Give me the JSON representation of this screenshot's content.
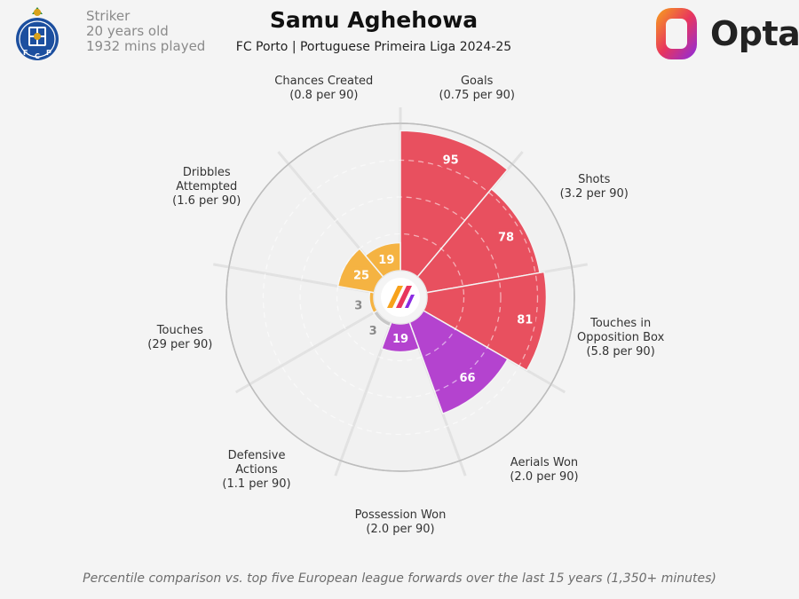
{
  "player": {
    "name": "Samu Aghehowa",
    "position": "Striker",
    "age": "20 years old",
    "minutes": "1932 mins played",
    "team_competition": "FC Porto | Portuguese Primeira Liga 2024-25"
  },
  "branding": {
    "opta": "Opta"
  },
  "footer": "Percentile comparison vs. top five European league forwards over the last 15 years (1,350+ minutes)",
  "colors": {
    "attacking": "#e8505f",
    "physical": "#b443cf",
    "defending": "#c7c7c7",
    "possession": "#f5b342",
    "ring": "#bdbdbd",
    "background": "#f4f4f4"
  },
  "chart_data": {
    "type": "polar-bar",
    "rmax": 100,
    "rings": [
      25,
      50,
      75
    ],
    "series": [
      {
        "label": [
          "Goals",
          "(0.75 per 90)"
        ],
        "value": 95,
        "group": "attacking"
      },
      {
        "label": [
          "Shots",
          "(3.2 per 90)"
        ],
        "value": 78,
        "group": "attacking"
      },
      {
        "label": [
          "Touches in",
          "Opposition Box",
          "(5.8 per 90)"
        ],
        "value": 81,
        "group": "attacking"
      },
      {
        "label": [
          "Aerials Won",
          "(2.0 per 90)"
        ],
        "value": 66,
        "group": "physical"
      },
      {
        "label": [
          "Possession Won",
          "(2.0 per 90)"
        ],
        "value": 19,
        "group": "physical"
      },
      {
        "label": [
          "Defensive",
          "Actions",
          "(1.1 per 90)"
        ],
        "value": 3,
        "group": "defending"
      },
      {
        "label": [
          "Touches",
          "(29 per 90)"
        ],
        "value": 3,
        "group": "possession"
      },
      {
        "label": [
          "Dribbles",
          "Attempted",
          "(1.6 per 90)"
        ],
        "value": 25,
        "group": "possession"
      },
      {
        "label": [
          "Chances Created",
          "(0.8 per 90)"
        ],
        "value": 19,
        "group": "possession"
      }
    ]
  }
}
